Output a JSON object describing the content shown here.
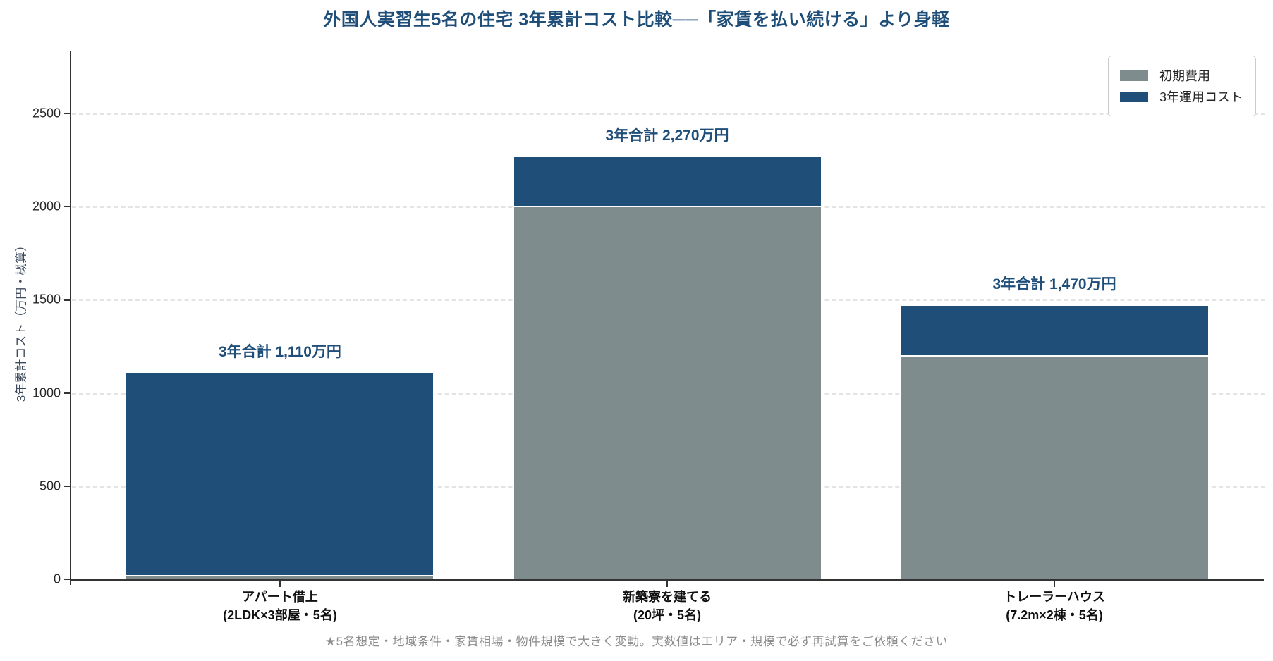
{
  "footnote": "★5名想定・地域条件・家賃相場・物件規模で大きく変動。実数値はエリア・規模で必ず再試算をご依頼ください",
  "colors": {
    "title": "#1f4e79",
    "annotation": "#1f4e79",
    "initial_cost": "#7f8c8d",
    "running_cost": "#1f4e79",
    "axis_text": "#262626",
    "grid": "#e4e4e4",
    "spine": "#333333",
    "footnote_text": "#8c8c8c"
  },
  "chart_data": {
    "type": "bar",
    "stacked": true,
    "title": "外国人実習生5名の住宅 3年累計コスト比較──「家賃を払い続ける」より身軽",
    "ylabel": "3年累計コスト（万円・概算）",
    "xlabel": "",
    "categories": [
      {
        "line1": "アパート借上",
        "line2": "(2LDK×3部屋・5名)"
      },
      {
        "line1": "新築寮を建てる",
        "line2": "(20坪・5名)"
      },
      {
        "line1": "トレーラーハウス",
        "line2": "(7.2m×2棟・5名)"
      }
    ],
    "series": [
      {
        "name": "初期費用",
        "color": "#7f8c8d",
        "values": [
          20,
          2000,
          1200
        ]
      },
      {
        "name": "3年運用コスト",
        "color": "#1f4e79",
        "values": [
          1090,
          270,
          270
        ]
      }
    ],
    "totals": [
      1110,
      2270,
      1470
    ],
    "total_labels": [
      "3年合計 1,110万円",
      "3年合計 2,270万円",
      "3年合計 1,470万円"
    ],
    "yticks": [
      0,
      500,
      1000,
      1500,
      2000,
      2500
    ],
    "ylim": [
      0,
      2833
    ],
    "grid": "horizontal-dashed",
    "legend_position": "upper-right"
  }
}
